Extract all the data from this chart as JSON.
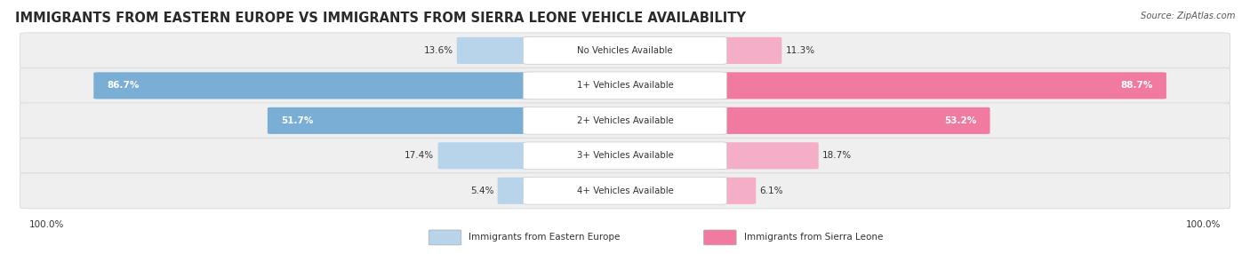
{
  "title": "IMMIGRANTS FROM EASTERN EUROPE VS IMMIGRANTS FROM SIERRA LEONE VEHICLE AVAILABILITY",
  "source": "Source: ZipAtlas.com",
  "categories": [
    "No Vehicles Available",
    "1+ Vehicles Available",
    "2+ Vehicles Available",
    "3+ Vehicles Available",
    "4+ Vehicles Available"
  ],
  "eastern_europe": [
    13.6,
    86.7,
    51.7,
    17.4,
    5.4
  ],
  "sierra_leone": [
    11.3,
    88.7,
    53.2,
    18.7,
    6.1
  ],
  "blue_dark": "#7aaed4",
  "blue_light": "#b8d4ea",
  "pink_dark": "#f07aa0",
  "pink_light": "#f5aec8",
  "row_bg_odd": "#eeeeee",
  "row_bg_even": "#e6e6e6",
  "legend_blue": "Immigrants from Eastern Europe",
  "legend_pink": "Immigrants from Sierra Leone",
  "title_fontsize": 10.5,
  "fig_bg": "#ffffff",
  "center_label_bg": "#ffffff",
  "center_label_border": "#cccccc"
}
